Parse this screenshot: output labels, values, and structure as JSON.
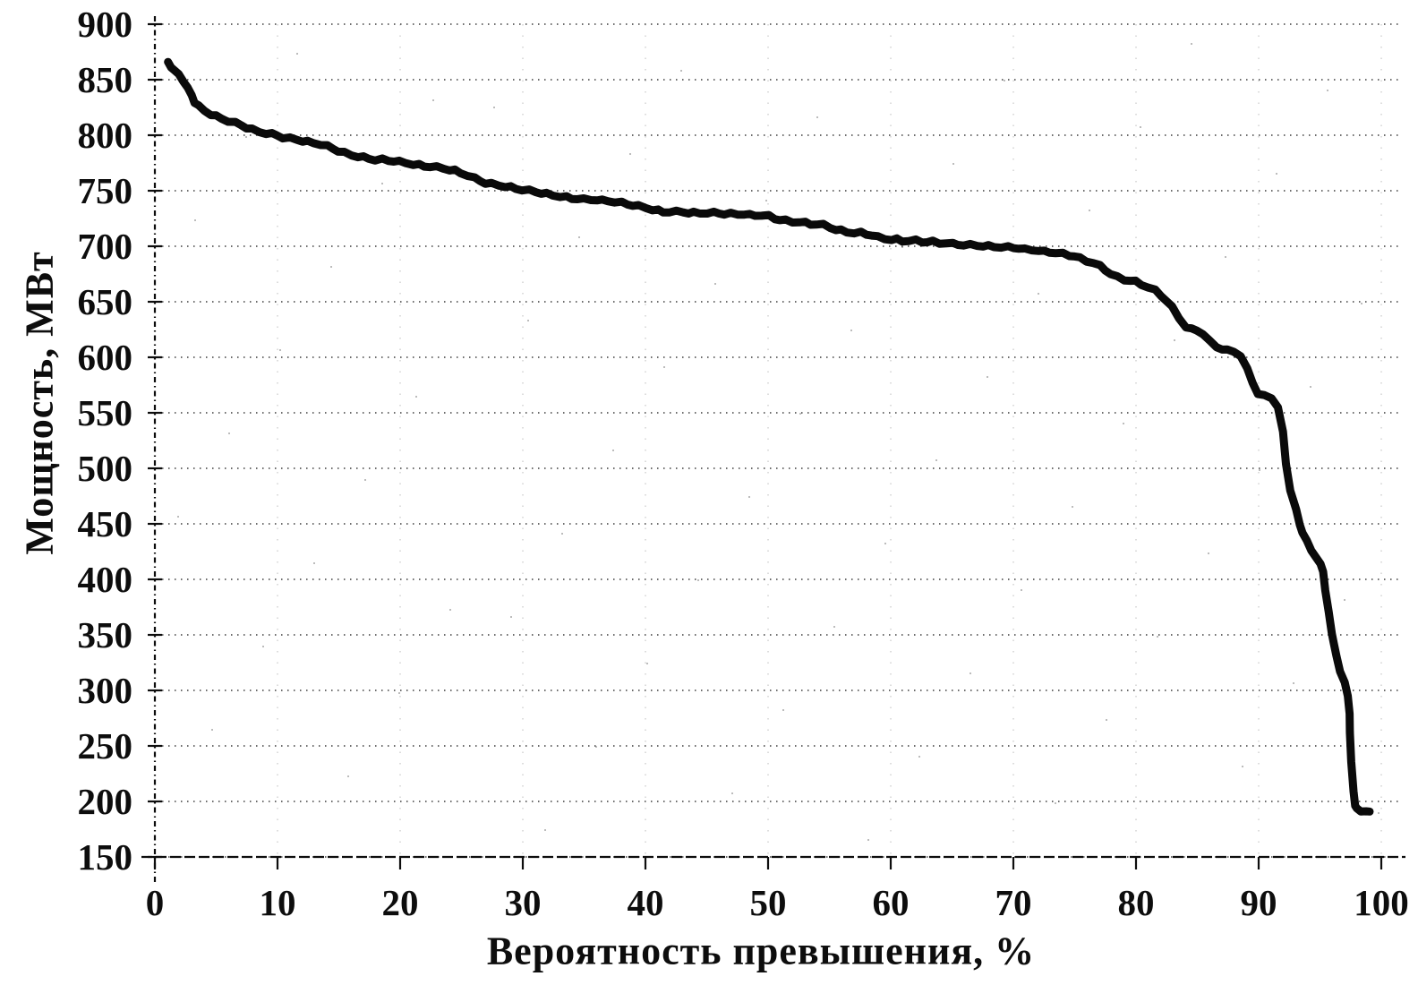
{
  "figure": {
    "background": "#ffffff",
    "ink_color": "#0d0d0d",
    "grid_color": "#444444"
  },
  "chart_data": {
    "type": "line",
    "title": "",
    "xlabel": "Вероятность превышения, %",
    "ylabel": "Мощность, МВт",
    "xlim": [
      0,
      100
    ],
    "ylim": [
      150,
      900
    ],
    "x_ticks": [
      0,
      10,
      20,
      30,
      40,
      50,
      60,
      70,
      80,
      90,
      100
    ],
    "y_ticks": [
      150,
      200,
      250,
      300,
      350,
      400,
      450,
      500,
      550,
      600,
      650,
      700,
      750,
      800,
      850,
      900
    ],
    "grid": "horizontal dotted lines at every 50 MW, faint dotted vertical remnants at every 10%",
    "legend": "none",
    "series": [
      {
        "name": "exceedance-curve",
        "color": "#0a0a0a",
        "stroke_width": 9,
        "points": [
          [
            1,
            866
          ],
          [
            1.3,
            862
          ],
          [
            1.6,
            858
          ],
          [
            2,
            855
          ],
          [
            2.3,
            849
          ],
          [
            2.6,
            842
          ],
          [
            3,
            836
          ],
          [
            3.3,
            830
          ],
          [
            3.6,
            826
          ],
          [
            4,
            822
          ],
          [
            4.5,
            819
          ],
          [
            5,
            817
          ],
          [
            5.5,
            815
          ],
          [
            6,
            813
          ],
          [
            6.5,
            811
          ],
          [
            7,
            809
          ],
          [
            7.5,
            807
          ],
          [
            8,
            805
          ],
          [
            8.5,
            803
          ],
          [
            9,
            802
          ],
          [
            9.5,
            801
          ],
          [
            10,
            800
          ],
          [
            10.5,
            798
          ],
          [
            11,
            797
          ],
          [
            11.5,
            796
          ],
          [
            12,
            795
          ],
          [
            12.5,
            794
          ],
          [
            13,
            793
          ],
          [
            13.5,
            792
          ],
          [
            14,
            790
          ],
          [
            14.5,
            788
          ],
          [
            15,
            786
          ],
          [
            15.5,
            784
          ],
          [
            16,
            782
          ],
          [
            16.5,
            781
          ],
          [
            17,
            780
          ],
          [
            17.5,
            779
          ],
          [
            18,
            778
          ],
          [
            18.5,
            778
          ],
          [
            19,
            777
          ],
          [
            19.5,
            777
          ],
          [
            20,
            776
          ],
          [
            20.5,
            775
          ],
          [
            21,
            774
          ],
          [
            21.5,
            773
          ],
          [
            22,
            772
          ],
          [
            22.5,
            772
          ],
          [
            23,
            771
          ],
          [
            23.5,
            770
          ],
          [
            24,
            769
          ],
          [
            24.5,
            768
          ],
          [
            25,
            766
          ],
          [
            25.5,
            764
          ],
          [
            26,
            761
          ],
          [
            26.5,
            759
          ],
          [
            27,
            757
          ],
          [
            27.5,
            756
          ],
          [
            28,
            755
          ],
          [
            28.5,
            754
          ],
          [
            29,
            753
          ],
          [
            29.5,
            752
          ],
          [
            30,
            751
          ],
          [
            30.5,
            750
          ],
          [
            31,
            749
          ],
          [
            31.5,
            748
          ],
          [
            32,
            747
          ],
          [
            32.5,
            746
          ],
          [
            33,
            745
          ],
          [
            33.5,
            744
          ],
          [
            34,
            743
          ],
          [
            34.5,
            743
          ],
          [
            35,
            742
          ],
          [
            35.5,
            742
          ],
          [
            36,
            742
          ],
          [
            36.5,
            741
          ],
          [
            37,
            741
          ],
          [
            37.5,
            740
          ],
          [
            38,
            739
          ],
          [
            38.5,
            738
          ],
          [
            39,
            737
          ],
          [
            39.5,
            736
          ],
          [
            40,
            735
          ],
          [
            40.5,
            733
          ],
          [
            41,
            732
          ],
          [
            41.5,
            731
          ],
          [
            42,
            731
          ],
          [
            42.5,
            731
          ],
          [
            43,
            731
          ],
          [
            43.5,
            730
          ],
          [
            44,
            730
          ],
          [
            44.5,
            730
          ],
          [
            45,
            730
          ],
          [
            45.5,
            730
          ],
          [
            46,
            730
          ],
          [
            46.5,
            729
          ],
          [
            47,
            729
          ],
          [
            47.5,
            729
          ],
          [
            48,
            729
          ],
          [
            48.5,
            728
          ],
          [
            49,
            728
          ],
          [
            49.5,
            728
          ],
          [
            50,
            727
          ],
          [
            50.5,
            725
          ],
          [
            51,
            724
          ],
          [
            51.5,
            723
          ],
          [
            52,
            722
          ],
          [
            52.5,
            722
          ],
          [
            53,
            721
          ],
          [
            53.5,
            720
          ],
          [
            54,
            720
          ],
          [
            54.5,
            719
          ],
          [
            55,
            717
          ],
          [
            55.5,
            715
          ],
          [
            56,
            714
          ],
          [
            56.5,
            713
          ],
          [
            57,
            712
          ],
          [
            57.5,
            712
          ],
          [
            58,
            711
          ],
          [
            58.5,
            710
          ],
          [
            59,
            708
          ],
          [
            59.5,
            707
          ],
          [
            60,
            706
          ],
          [
            60.5,
            706
          ],
          [
            61,
            705
          ],
          [
            61.5,
            705
          ],
          [
            62,
            705
          ],
          [
            62.5,
            704
          ],
          [
            63,
            704
          ],
          [
            63.5,
            704
          ],
          [
            64,
            703
          ],
          [
            64.5,
            703
          ],
          [
            65,
            702
          ],
          [
            65.5,
            702
          ],
          [
            66,
            701
          ],
          [
            66.5,
            701
          ],
          [
            67,
            701
          ],
          [
            67.5,
            700
          ],
          [
            68,
            700
          ],
          [
            68.5,
            700
          ],
          [
            69,
            699
          ],
          [
            69.5,
            699
          ],
          [
            70,
            699
          ],
          [
            70.5,
            698
          ],
          [
            71,
            697
          ],
          [
            71.5,
            697
          ],
          [
            72,
            696
          ],
          [
            72.5,
            695
          ],
          [
            73,
            695
          ],
          [
            73.5,
            694
          ],
          [
            74,
            693
          ],
          [
            74.5,
            692
          ],
          [
            75,
            691
          ],
          [
            75.5,
            689
          ],
          [
            76,
            687
          ],
          [
            76.5,
            685
          ],
          [
            77,
            682
          ],
          [
            77.5,
            679
          ],
          [
            78,
            675
          ],
          [
            78.5,
            672
          ],
          [
            79,
            670
          ],
          [
            79.5,
            669
          ],
          [
            80,
            668
          ],
          [
            80.5,
            666
          ],
          [
            81,
            663
          ],
          [
            81.5,
            660
          ],
          [
            82,
            656
          ],
          [
            82.5,
            651
          ],
          [
            83,
            645
          ],
          [
            83.5,
            636
          ],
          [
            84,
            627
          ],
          [
            84.5,
            625
          ],
          [
            85,
            625
          ],
          [
            85.5,
            621
          ],
          [
            86,
            614
          ],
          [
            86.5,
            610
          ],
          [
            87,
            607
          ],
          [
            87.5,
            606
          ],
          [
            88,
            606
          ],
          [
            88.5,
            601
          ],
          [
            89,
            589
          ],
          [
            89.5,
            578
          ],
          [
            90,
            567
          ],
          [
            90.5,
            565
          ],
          [
            91,
            564
          ],
          [
            91.5,
            555
          ],
          [
            92,
            532
          ],
          [
            92.3,
            505
          ],
          [
            92.6,
            480
          ],
          [
            93,
            462
          ],
          [
            93.3,
            450
          ],
          [
            93.6,
            442
          ],
          [
            94,
            434
          ],
          [
            94.3,
            427
          ],
          [
            94.6,
            420
          ],
          [
            95,
            413
          ],
          [
            95.3,
            408
          ],
          [
            95.5,
            390
          ],
          [
            95.7,
            370
          ],
          [
            95.9,
            352
          ],
          [
            96.1,
            342
          ],
          [
            96.4,
            330
          ],
          [
            96.7,
            318
          ],
          [
            97,
            307
          ],
          [
            97.2,
            294
          ],
          [
            97.4,
            280
          ],
          [
            97.5,
            262
          ],
          [
            97.6,
            235
          ],
          [
            97.7,
            210
          ],
          [
            97.8,
            196
          ],
          [
            98,
            193
          ],
          [
            98.4,
            192
          ],
          [
            98.8,
            191
          ],
          [
            99,
            190
          ]
        ]
      }
    ]
  }
}
